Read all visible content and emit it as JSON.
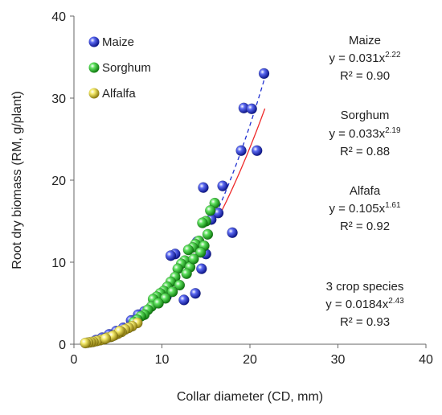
{
  "chart_data": {
    "type": "scatter",
    "title": "",
    "xlabel": "Collar diameter  (CD, mm)",
    "ylabel": "Root dry biomass (RM, g/plant)",
    "xlim": [
      0,
      40
    ],
    "ylim": [
      0,
      40
    ],
    "x_ticks": [
      "0",
      "10",
      "20",
      "30",
      "40"
    ],
    "y_ticks": [
      "0",
      "10",
      "20",
      "30",
      "40"
    ],
    "grid": false,
    "legend_position": "top-left",
    "series": [
      {
        "name": "Maize",
        "color": "#1f2fd1",
        "points": [
          [
            14.7,
            19.1
          ],
          [
            16.9,
            19.3
          ],
          [
            18.0,
            13.6
          ],
          [
            19.0,
            23.6
          ],
          [
            19.3,
            28.8
          ],
          [
            20.2,
            28.7
          ],
          [
            20.8,
            23.6
          ],
          [
            21.6,
            33.0
          ],
          [
            16.4,
            16.0
          ],
          [
            15.6,
            15.2
          ],
          [
            15.0,
            11.0
          ],
          [
            14.5,
            9.2
          ],
          [
            14.0,
            12.5
          ],
          [
            13.8,
            6.2
          ],
          [
            12.5,
            5.4
          ],
          [
            11.5,
            11.0
          ],
          [
            11.0,
            10.8
          ],
          [
            10.5,
            5.8
          ],
          [
            9.5,
            5.5
          ],
          [
            8.0,
            4.0
          ],
          [
            7.3,
            3.6
          ],
          [
            6.5,
            2.9
          ],
          [
            5.6,
            2.0
          ],
          [
            4.8,
            1.6
          ],
          [
            4.0,
            1.2
          ],
          [
            3.2,
            0.8
          ],
          [
            2.5,
            0.5
          ]
        ]
      },
      {
        "name": "Sorghum",
        "color": "#22b822",
        "points": [
          [
            16.0,
            17.2
          ],
          [
            15.5,
            16.3
          ],
          [
            15.0,
            15.0
          ],
          [
            14.6,
            14.8
          ],
          [
            14.2,
            12.6
          ],
          [
            13.8,
            12.2
          ],
          [
            13.5,
            11.8
          ],
          [
            13.0,
            11.5
          ],
          [
            12.6,
            10.2
          ],
          [
            12.2,
            9.8
          ],
          [
            11.8,
            9.2
          ],
          [
            11.5,
            8.2
          ],
          [
            11.0,
            7.6
          ],
          [
            10.6,
            7.0
          ],
          [
            10.2,
            6.5
          ],
          [
            9.8,
            6.2
          ],
          [
            9.4,
            5.8
          ],
          [
            9.0,
            5.5
          ],
          [
            8.8,
            4.6
          ],
          [
            8.4,
            4.2
          ],
          [
            8.0,
            3.6
          ],
          [
            7.6,
            3.4
          ],
          [
            7.2,
            3.0
          ],
          [
            6.8,
            2.7
          ],
          [
            14.8,
            12.0
          ],
          [
            13.2,
            9.4
          ],
          [
            12.8,
            8.6
          ],
          [
            12.0,
            7.2
          ],
          [
            11.2,
            6.4
          ],
          [
            10.4,
            5.6
          ],
          [
            9.6,
            5.0
          ],
          [
            15.2,
            13.4
          ],
          [
            14.4,
            11.2
          ],
          [
            13.6,
            10.4
          ]
        ]
      },
      {
        "name": "Alfalfa",
        "color": "#e8d825",
        "points": [
          [
            7.2,
            2.6
          ],
          [
            6.6,
            2.2
          ],
          [
            6.2,
            2.0
          ],
          [
            5.8,
            1.8
          ],
          [
            5.4,
            1.5
          ],
          [
            5.0,
            1.3
          ],
          [
            4.6,
            1.1
          ],
          [
            4.2,
            0.9
          ],
          [
            3.8,
            0.8
          ],
          [
            3.4,
            0.6
          ],
          [
            3.0,
            0.5
          ],
          [
            2.6,
            0.4
          ],
          [
            2.2,
            0.3
          ],
          [
            1.9,
            0.25
          ],
          [
            1.6,
            0.2
          ],
          [
            1.3,
            0.15
          ],
          [
            5.2,
            1.6
          ],
          [
            4.4,
            1.0
          ],
          [
            3.6,
            0.7
          ]
        ]
      }
    ],
    "fit_lines": [
      {
        "series": "Maize",
        "coef": 0.031,
        "exp": 2.22,
        "x_range": [
          16.5,
          21.7
        ],
        "style": "solid",
        "color": "#ee2a2a"
      },
      {
        "series": "3 crop species",
        "coef": 0.0184,
        "exp": 2.43,
        "x_range": [
          16.5,
          21.7
        ],
        "style": "dashed",
        "color": "#1f2fd1"
      }
    ],
    "annotations": [
      {
        "name": "Maize",
        "eq_prefix": "y = 0.031x",
        "exponent": "2.22",
        "r2": "R² = 0.90"
      },
      {
        "name": "Sorghum",
        "eq_prefix": "y = 0.033x",
        "exponent": "2.19",
        "r2": "R² = 0.88"
      },
      {
        "name": "Alfafa",
        "eq_prefix": "y = 0.105x",
        "exponent": "1.61",
        "r2": "R² = 0.92"
      },
      {
        "name": "3 crop species",
        "eq_prefix": "y = 0.0184x",
        "exponent": "2.43",
        "r2": "R² = 0.93"
      }
    ]
  }
}
